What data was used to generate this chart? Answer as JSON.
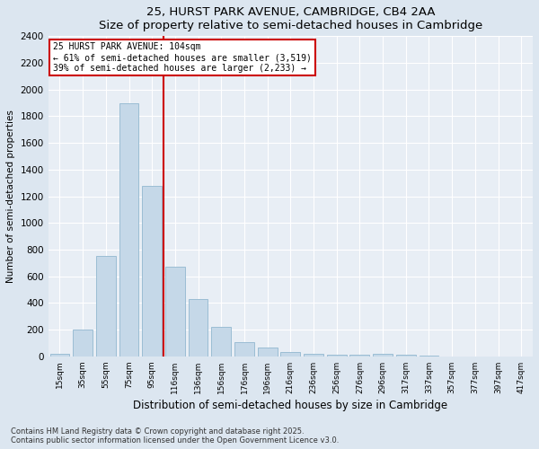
{
  "title1": "25, HURST PARK AVENUE, CAMBRIDGE, CB4 2AA",
  "title2": "Size of property relative to semi-detached houses in Cambridge",
  "xlabel": "Distribution of semi-detached houses by size in Cambridge",
  "ylabel": "Number of semi-detached properties",
  "categories": [
    "15sqm",
    "35sqm",
    "55sqm",
    "75sqm",
    "95sqm",
    "116sqm",
    "136sqm",
    "156sqm",
    "176sqm",
    "196sqm",
    "216sqm",
    "236sqm",
    "256sqm",
    "276sqm",
    "296sqm",
    "317sqm",
    "337sqm",
    "357sqm",
    "377sqm",
    "397sqm",
    "417sqm"
  ],
  "values": [
    20,
    200,
    750,
    1900,
    1280,
    670,
    430,
    220,
    110,
    65,
    35,
    20,
    15,
    10,
    17,
    10,
    5,
    2,
    1,
    0,
    0
  ],
  "bar_color": "#c5d8e8",
  "bar_edge_color": "#9bbdd4",
  "highlight_color": "#cc0000",
  "annotation_line1": "25 HURST PARK AVENUE: 104sqm",
  "annotation_line2": "← 61% of semi-detached houses are smaller (3,519)",
  "annotation_line3": "39% of semi-detached houses are larger (2,233) →",
  "ylim": [
    0,
    2400
  ],
  "yticks": [
    0,
    200,
    400,
    600,
    800,
    1000,
    1200,
    1400,
    1600,
    1800,
    2000,
    2200,
    2400
  ],
  "footer1": "Contains HM Land Registry data © Crown copyright and database right 2025.",
  "footer2": "Contains public sector information licensed under the Open Government Licence v3.0.",
  "bg_color": "#dce6f0",
  "plot_bg_color": "#e8eef5"
}
